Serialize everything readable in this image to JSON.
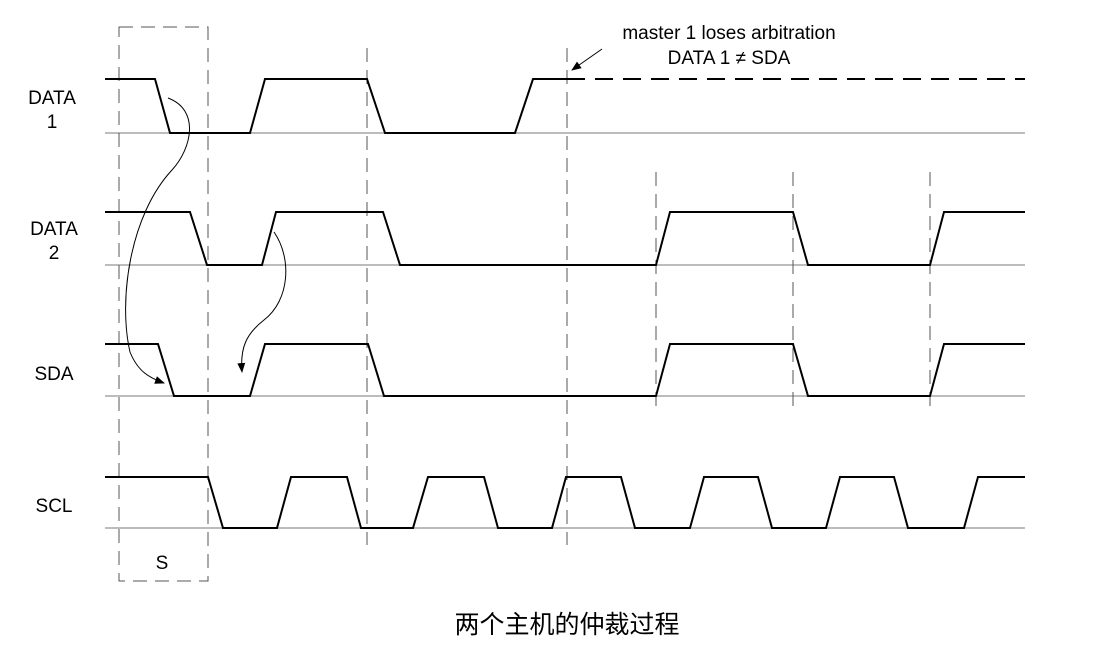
{
  "signals": [
    {
      "id": "data1",
      "label_line1": "DATA",
      "label_line2": "1"
    },
    {
      "id": "data2",
      "label_line1": "DATA",
      "label_line2": "2"
    },
    {
      "id": "sda",
      "label_line1": "SDA",
      "label_line2": ""
    },
    {
      "id": "scl",
      "label_line1": "SCL",
      "label_line2": ""
    }
  ],
  "annotation": {
    "line1": "master 1 loses arbitration",
    "line2": "DATA 1 ≠ SDA"
  },
  "start_label": "S",
  "caption": "两个主机的仲裁过程",
  "colors": {
    "trace": "#000000",
    "baseline": "#7a7a7a",
    "guide": "#555555"
  }
}
